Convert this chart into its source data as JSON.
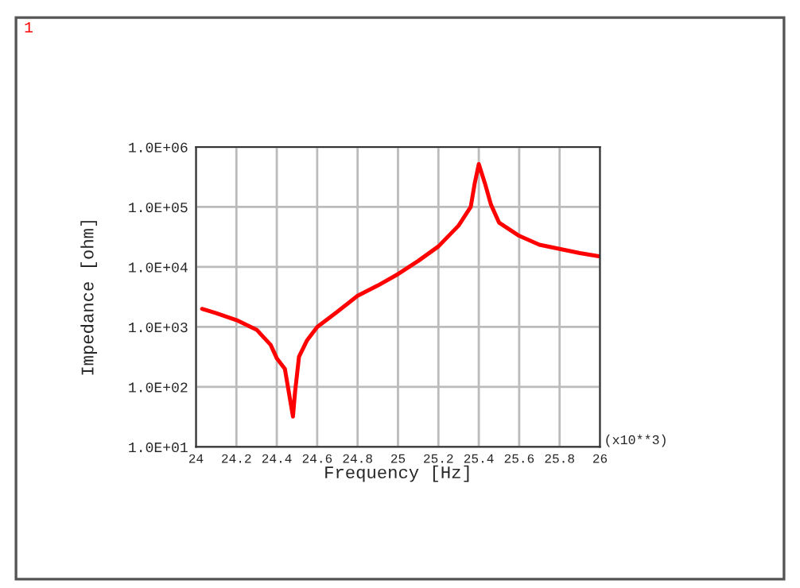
{
  "chart_data": {
    "type": "line",
    "xlabel": "Frequency [Hz]",
    "ylabel": "Impedance [ohm]",
    "log": "y",
    "grid": true,
    "marker": "none",
    "line_style": "solid",
    "annotations": [
      "1",
      "(x10**3)"
    ],
    "xlim": [
      24,
      26
    ],
    "xticks": [
      24,
      24.2,
      24.4,
      24.6,
      24.8,
      25,
      25.2,
      25.4,
      25.6,
      25.8,
      26
    ],
    "ylim": [
      10,
      1000000
    ],
    "yticks": [
      {
        "value": 10,
        "label": "1.0E+01"
      },
      {
        "value": 100,
        "label": "1.0E+02"
      },
      {
        "value": 1000,
        "label": "1.0E+03"
      },
      {
        "value": 10000,
        "label": "1.0E+04"
      },
      {
        "value": 100000,
        "label": "1.0E+05"
      },
      {
        "value": 1000000,
        "label": "1.0E+06"
      }
    ],
    "x": [
      24.03,
      24.1,
      24.2,
      24.3,
      24.37,
      24.4,
      24.44,
      24.46,
      24.48,
      24.49,
      24.51,
      24.55,
      24.6,
      24.7,
      24.8,
      24.9,
      25.0,
      25.1,
      25.2,
      25.3,
      25.36,
      25.38,
      25.4,
      25.43,
      25.46,
      25.5,
      25.6,
      25.7,
      25.8,
      25.9,
      26.0
    ],
    "series": [
      {
        "color": "#ff0000",
        "values": [
          2000,
          1700,
          1300,
          900,
          500,
          300,
          200,
          80,
          32,
          80,
          320,
          600,
          1000,
          1800,
          3300,
          4900,
          7600,
          12600,
          22000,
          49000,
          100000,
          250000,
          520000,
          250000,
          110000,
          55000,
          33000,
          23500,
          20000,
          17000,
          15000
        ]
      }
    ]
  }
}
